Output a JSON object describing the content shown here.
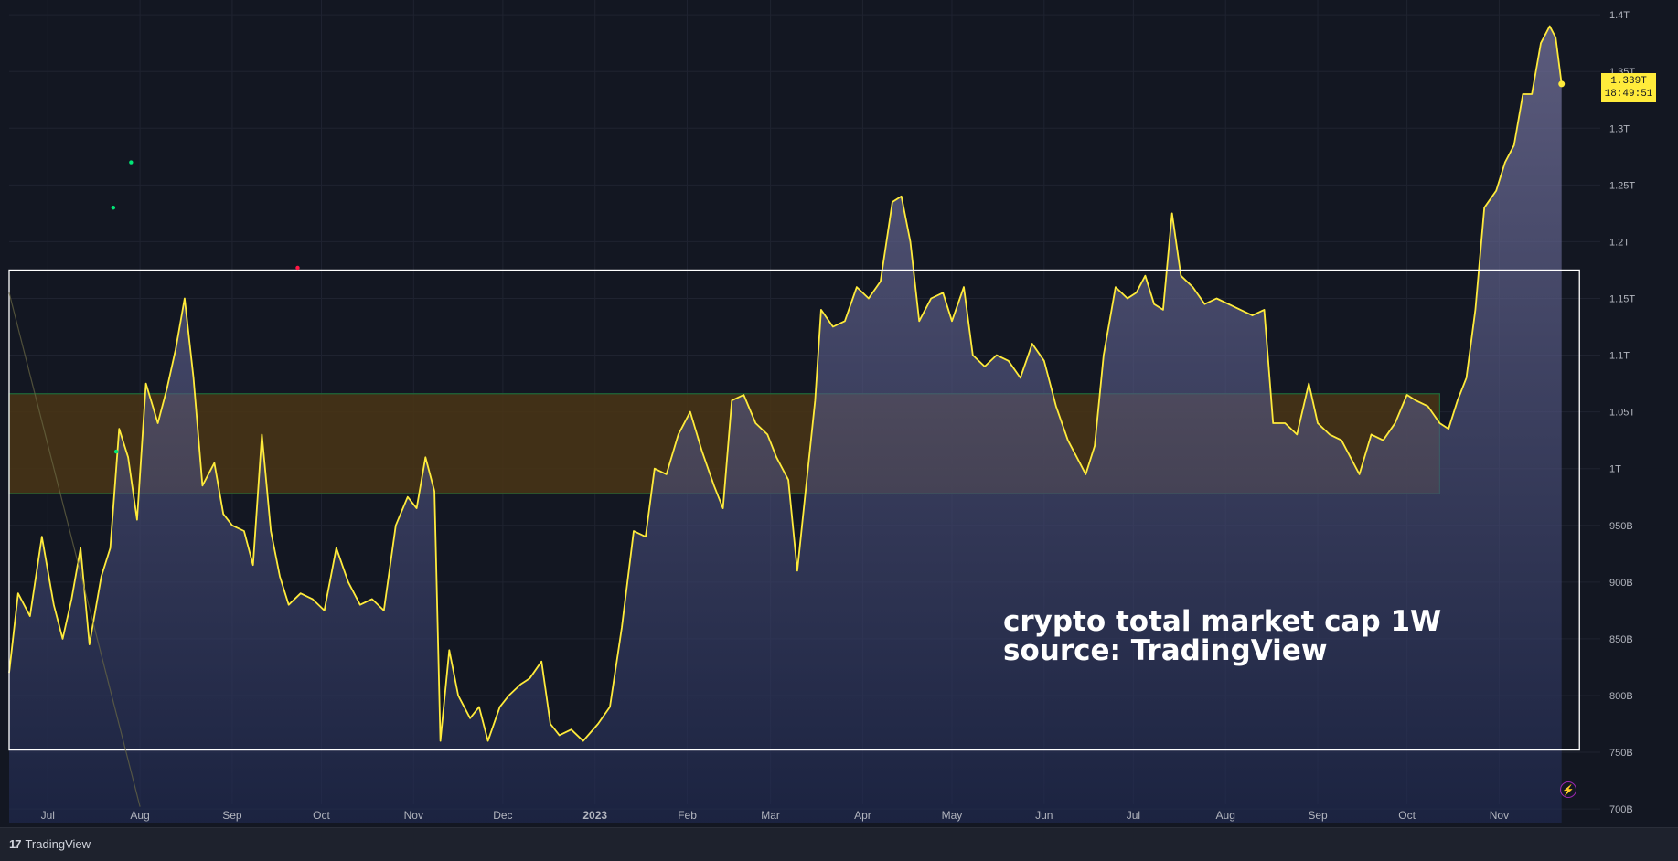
{
  "chart_data": {
    "type": "area",
    "interval": "1W",
    "y_axis": {
      "ticks": [
        "1.4T",
        "1.35T",
        "1.3T",
        "1.25T",
        "1.2T",
        "1.15T",
        "1.1T",
        "1.05T",
        "1T",
        "950B",
        "900B",
        "850B",
        "800B",
        "750B",
        "700B"
      ],
      "tick_values": [
        1400,
        1350,
        1300,
        1250,
        1200,
        1150,
        1100,
        1050,
        1000,
        950,
        900,
        850,
        800,
        750,
        700
      ],
      "unit": "billion USD",
      "ylim": [
        688,
        1413
      ]
    },
    "x_axis": {
      "ticks": [
        "Jul",
        "Aug",
        "Sep",
        "Oct",
        "Nov",
        "Dec",
        "2023",
        "Feb",
        "Mar",
        "Apr",
        "May",
        "Jun",
        "Jul",
        "Aug",
        "Sep",
        "Oct",
        "Nov"
      ],
      "tick_dates": [
        "2022-07-01",
        "2022-08-01",
        "2022-09-01",
        "2022-10-01",
        "2022-11-01",
        "2022-12-01",
        "2023-01-01",
        "2023-02-01",
        "2023-03-01",
        "2023-04-01",
        "2023-05-01",
        "2023-06-01",
        "2023-07-01",
        "2023-08-01",
        "2023-09-01",
        "2023-10-01",
        "2023-11-01"
      ],
      "xlim": [
        "2022-06-18",
        "2023-12-05"
      ]
    },
    "series": [
      {
        "line_color": "#ffeb3b",
        "points": [
          [
            "2022-06-18",
            820
          ],
          [
            "2022-06-21",
            890
          ],
          [
            "2022-06-25",
            870
          ],
          [
            "2022-06-29",
            940
          ],
          [
            "2022-07-03",
            880
          ],
          [
            "2022-07-06",
            850
          ],
          [
            "2022-07-09",
            885
          ],
          [
            "2022-07-12",
            930
          ],
          [
            "2022-07-15",
            845
          ],
          [
            "2022-07-19",
            905
          ],
          [
            "2022-07-22",
            930
          ],
          [
            "2022-07-25",
            1035
          ],
          [
            "2022-07-28",
            1010
          ],
          [
            "2022-07-31",
            955
          ],
          [
            "2022-08-03",
            1075
          ],
          [
            "2022-08-07",
            1040
          ],
          [
            "2022-08-10",
            1070
          ],
          [
            "2022-08-13",
            1105
          ],
          [
            "2022-08-16",
            1150
          ],
          [
            "2022-08-19",
            1080
          ],
          [
            "2022-08-22",
            985
          ],
          [
            "2022-08-26",
            1005
          ],
          [
            "2022-08-29",
            960
          ],
          [
            "2022-09-01",
            950
          ],
          [
            "2022-09-05",
            945
          ],
          [
            "2022-09-08",
            915
          ],
          [
            "2022-09-11",
            1030
          ],
          [
            "2022-09-14",
            945
          ],
          [
            "2022-09-17",
            905
          ],
          [
            "2022-09-20",
            880
          ],
          [
            "2022-09-24",
            890
          ],
          [
            "2022-09-28",
            885
          ],
          [
            "2022-10-02",
            875
          ],
          [
            "2022-10-06",
            930
          ],
          [
            "2022-10-10",
            900
          ],
          [
            "2022-10-14",
            880
          ],
          [
            "2022-10-18",
            885
          ],
          [
            "2022-10-22",
            875
          ],
          [
            "2022-10-26",
            950
          ],
          [
            "2022-10-30",
            975
          ],
          [
            "2022-11-02",
            965
          ],
          [
            "2022-11-05",
            1010
          ],
          [
            "2022-11-08",
            980
          ],
          [
            "2022-11-10",
            760
          ],
          [
            "2022-11-13",
            840
          ],
          [
            "2022-11-16",
            800
          ],
          [
            "2022-11-20",
            780
          ],
          [
            "2022-11-23",
            790
          ],
          [
            "2022-11-26",
            760
          ],
          [
            "2022-11-30",
            790
          ],
          [
            "2022-12-03",
            800
          ],
          [
            "2022-12-07",
            810
          ],
          [
            "2022-12-10",
            815
          ],
          [
            "2022-12-14",
            830
          ],
          [
            "2022-12-17",
            775
          ],
          [
            "2022-12-20",
            765
          ],
          [
            "2022-12-24",
            770
          ],
          [
            "2022-12-28",
            760
          ],
          [
            "2023-01-02",
            775
          ],
          [
            "2023-01-06",
            790
          ],
          [
            "2023-01-10",
            860
          ],
          [
            "2023-01-14",
            945
          ],
          [
            "2023-01-18",
            940
          ],
          [
            "2023-01-21",
            1000
          ],
          [
            "2023-01-25",
            995
          ],
          [
            "2023-01-29",
            1030
          ],
          [
            "2023-02-02",
            1050
          ],
          [
            "2023-02-06",
            1015
          ],
          [
            "2023-02-10",
            985
          ],
          [
            "2023-02-13",
            965
          ],
          [
            "2023-02-16",
            1060
          ],
          [
            "2023-02-20",
            1065
          ],
          [
            "2023-02-24",
            1040
          ],
          [
            "2023-02-28",
            1030
          ],
          [
            "2023-03-03",
            1010
          ],
          [
            "2023-03-07",
            990
          ],
          [
            "2023-03-10",
            910
          ],
          [
            "2023-03-13",
            985
          ],
          [
            "2023-03-16",
            1060
          ],
          [
            "2023-03-18",
            1140
          ],
          [
            "2023-03-22",
            1125
          ],
          [
            "2023-03-26",
            1130
          ],
          [
            "2023-03-30",
            1160
          ],
          [
            "2023-04-03",
            1150
          ],
          [
            "2023-04-07",
            1165
          ],
          [
            "2023-04-11",
            1235
          ],
          [
            "2023-04-14",
            1240
          ],
          [
            "2023-04-17",
            1200
          ],
          [
            "2023-04-20",
            1130
          ],
          [
            "2023-04-24",
            1150
          ],
          [
            "2023-04-28",
            1155
          ],
          [
            "2023-05-01",
            1130
          ],
          [
            "2023-05-05",
            1160
          ],
          [
            "2023-05-08",
            1100
          ],
          [
            "2023-05-12",
            1090
          ],
          [
            "2023-05-16",
            1100
          ],
          [
            "2023-05-20",
            1095
          ],
          [
            "2023-05-24",
            1080
          ],
          [
            "2023-05-28",
            1110
          ],
          [
            "2023-06-01",
            1095
          ],
          [
            "2023-06-05",
            1055
          ],
          [
            "2023-06-09",
            1025
          ],
          [
            "2023-06-12",
            1010
          ],
          [
            "2023-06-15",
            995
          ],
          [
            "2023-06-18",
            1020
          ],
          [
            "2023-06-21",
            1100
          ],
          [
            "2023-06-25",
            1160
          ],
          [
            "2023-06-29",
            1150
          ],
          [
            "2023-07-02",
            1155
          ],
          [
            "2023-07-05",
            1170
          ],
          [
            "2023-07-08",
            1145
          ],
          [
            "2023-07-11",
            1140
          ],
          [
            "2023-07-14",
            1225
          ],
          [
            "2023-07-17",
            1170
          ],
          [
            "2023-07-21",
            1160
          ],
          [
            "2023-07-25",
            1145
          ],
          [
            "2023-07-29",
            1150
          ],
          [
            "2023-08-02",
            1145
          ],
          [
            "2023-08-06",
            1140
          ],
          [
            "2023-08-10",
            1135
          ],
          [
            "2023-08-14",
            1140
          ],
          [
            "2023-08-17",
            1040
          ],
          [
            "2023-08-21",
            1040
          ],
          [
            "2023-08-25",
            1030
          ],
          [
            "2023-08-29",
            1075
          ],
          [
            "2023-09-01",
            1040
          ],
          [
            "2023-09-05",
            1030
          ],
          [
            "2023-09-09",
            1025
          ],
          [
            "2023-09-12",
            1010
          ],
          [
            "2023-09-15",
            995
          ],
          [
            "2023-09-19",
            1030
          ],
          [
            "2023-09-23",
            1025
          ],
          [
            "2023-09-27",
            1040
          ],
          [
            "2023-10-01",
            1065
          ],
          [
            "2023-10-04",
            1060
          ],
          [
            "2023-10-08",
            1055
          ],
          [
            "2023-10-12",
            1040
          ],
          [
            "2023-10-15",
            1035
          ],
          [
            "2023-10-18",
            1060
          ],
          [
            "2023-10-21",
            1080
          ],
          [
            "2023-10-24",
            1140
          ],
          [
            "2023-10-27",
            1230
          ],
          [
            "2023-10-31",
            1245
          ],
          [
            "2023-11-03",
            1270
          ],
          [
            "2023-11-06",
            1285
          ],
          [
            "2023-11-09",
            1330
          ],
          [
            "2023-11-12",
            1330
          ],
          [
            "2023-11-15",
            1375
          ],
          [
            "2023-11-18",
            1390
          ],
          [
            "2023-11-20",
            1380
          ],
          [
            "2023-11-22",
            1339
          ]
        ]
      }
    ],
    "last_value_label": "1.339T",
    "countdown_label": "18:49:51",
    "box_zone": {
      "from_date": "2022-06-18",
      "to_date": "2023-11-28",
      "low": 752,
      "high": 1175
    },
    "support_zone": {
      "from_date": "2022-06-18",
      "to_date": "2023-10-12",
      "low": 978,
      "high": 1066
    },
    "markers": [
      {
        "date": "2022-07-23",
        "value": 1230,
        "color": "#00e676"
      },
      {
        "date": "2022-07-29",
        "value": 1270,
        "color": "#00e676"
      },
      {
        "date": "2022-07-24",
        "value": 1015,
        "color": "#00e676"
      },
      {
        "date": "2022-09-23",
        "value": 1177,
        "color": "#ff1744"
      }
    ],
    "colors": {
      "background": "#131722",
      "line": "#ffeb3b",
      "fill_top": "#7e7ca8",
      "fill_bottom": "#202a52",
      "zone": "#4a3515",
      "zone_border": "#1f6b3a",
      "box": "#ffffff",
      "grid": "#1f2330",
      "axis_text": "#b2b5be"
    }
  },
  "annotation": {
    "line1": "crypto total market cap 1W",
    "line2": "source: TradingView"
  },
  "footer": {
    "brand": "TradingView",
    "mark": "17"
  },
  "badges": {
    "price": "1.339T",
    "countdown": "18:49:51"
  }
}
